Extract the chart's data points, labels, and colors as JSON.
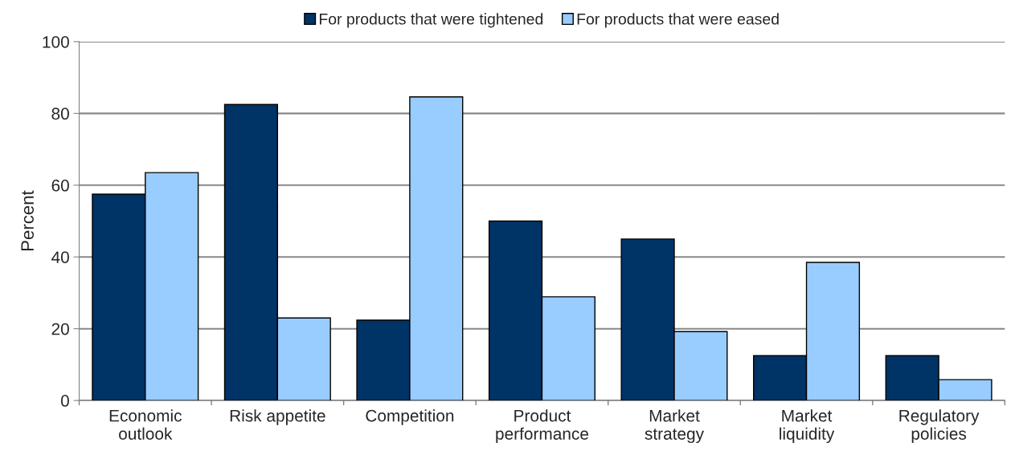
{
  "chart_data": {
    "type": "bar",
    "ylabel": "Percent",
    "categories": [
      "Economic\noutlook",
      "Risk appetite",
      "Competition",
      "Product\nperformance",
      "Market\nstrategy",
      "Market\nliquidity",
      "Regulatory\npolicies"
    ],
    "series": [
      {
        "name": "For products that were tightened",
        "color": "#003366",
        "values": [
          57.5,
          82.5,
          22.4,
          50,
          45,
          12.5,
          12.5
        ]
      },
      {
        "name": "For products that were eased",
        "color": "#99ccff",
        "values": [
          63.5,
          23,
          84.6,
          28.9,
          19.2,
          38.5,
          5.8
        ]
      }
    ],
    "ylim": [
      0,
      100
    ],
    "yticks": [
      0,
      20,
      40,
      60,
      80,
      100
    ],
    "grid": "y",
    "legend": "top"
  }
}
